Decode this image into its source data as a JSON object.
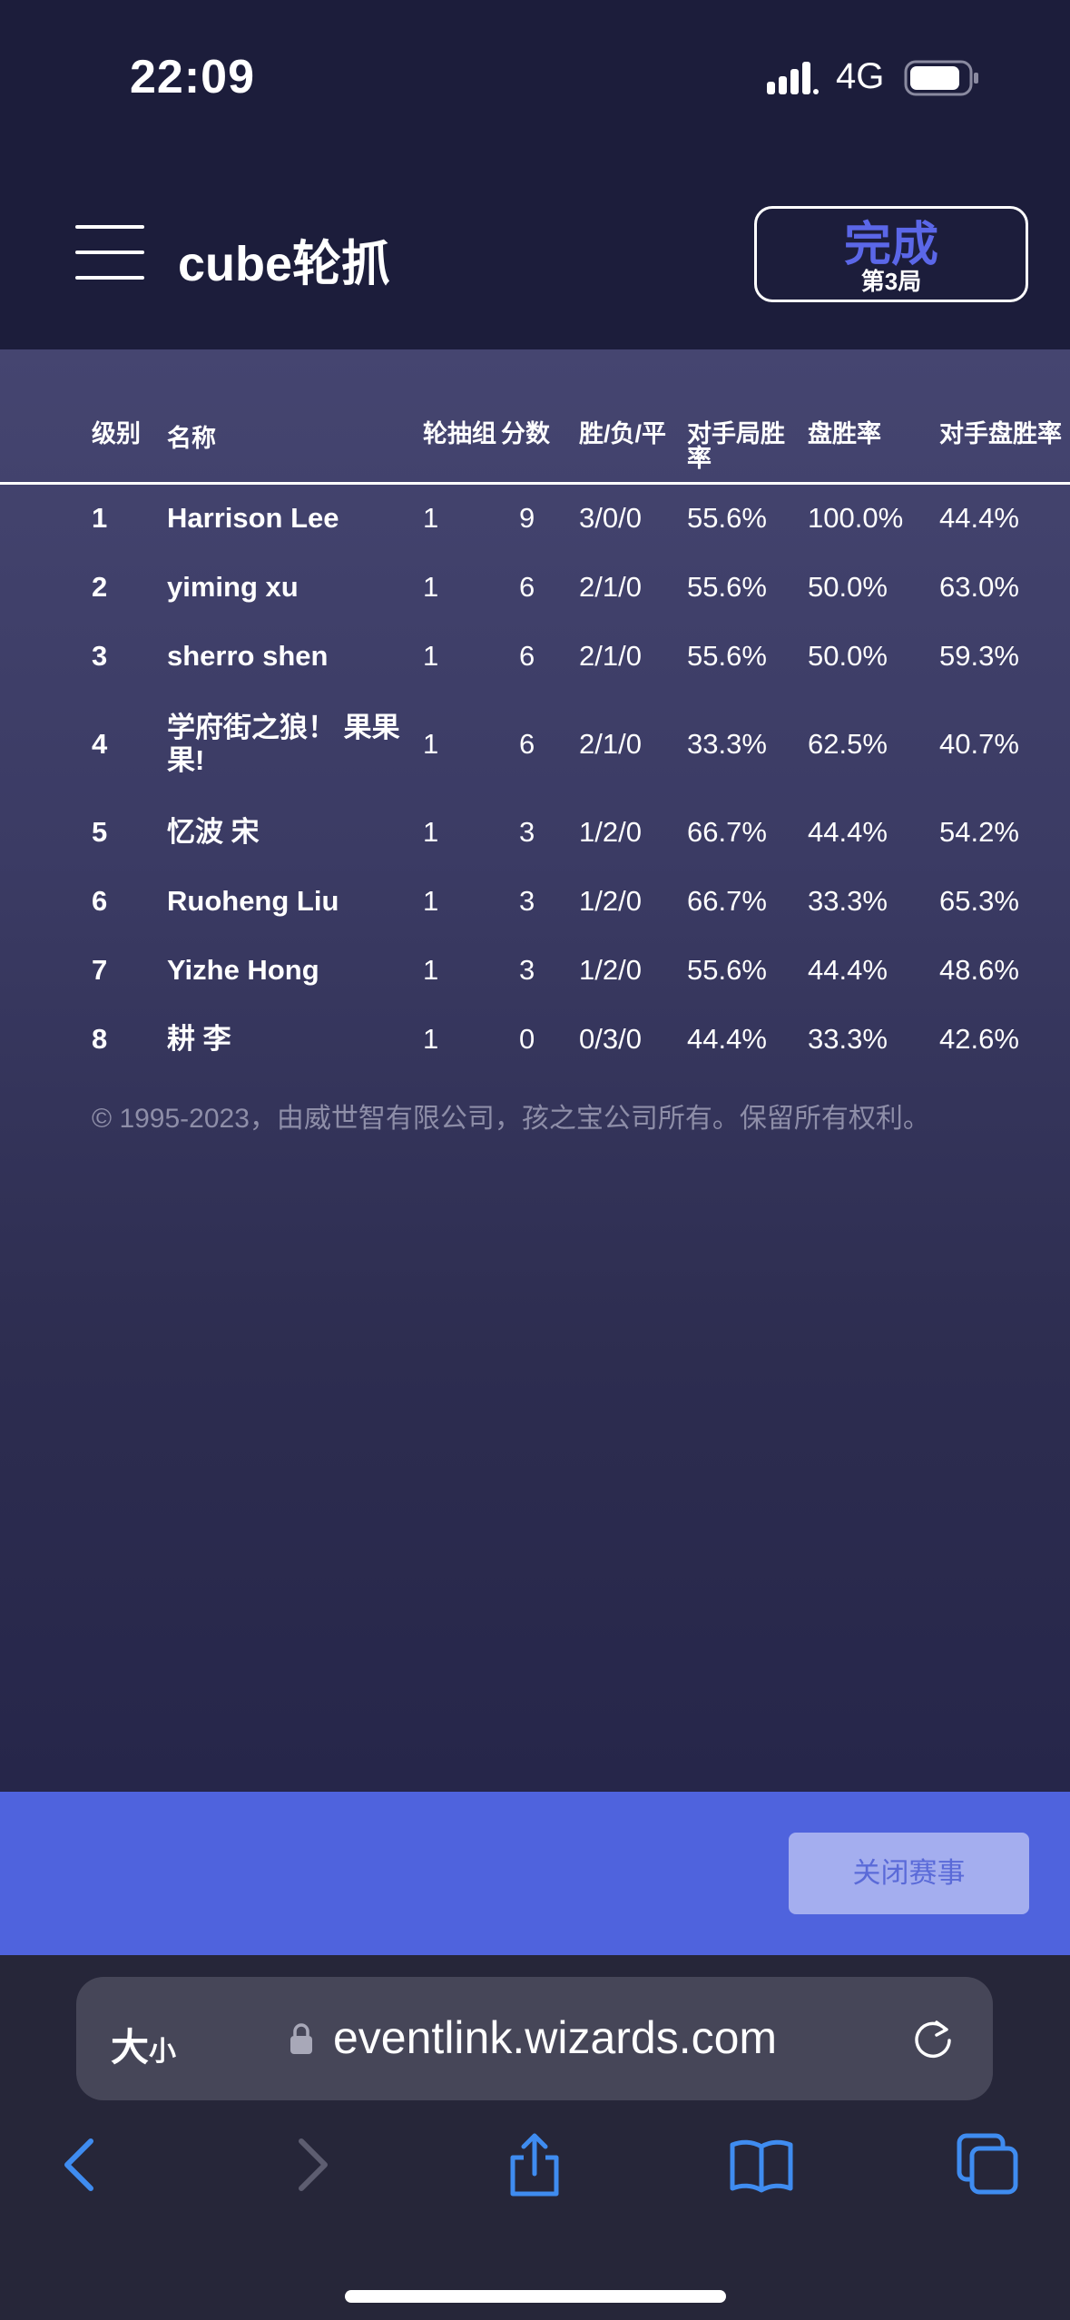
{
  "status_bar": {
    "time": "22:09",
    "network": "4G"
  },
  "header": {
    "title": "cube轮抓",
    "round_status": "完成",
    "round_label": "第3局"
  },
  "table": {
    "columns": [
      "级别",
      "名称",
      "轮抽组",
      "分数",
      "胜/负/平",
      "对手局胜率",
      "盘胜率",
      "对手盘胜率"
    ],
    "rows": [
      {
        "rank": "1",
        "name": "Harrison Lee",
        "table": "1",
        "points": "9",
        "record": "3/0/0",
        "omw": "55.6%",
        "gw": "100.0%",
        "ogw": "44.4%"
      },
      {
        "rank": "2",
        "name": "yiming xu",
        "table": "1",
        "points": "6",
        "record": "2/1/0",
        "omw": "55.6%",
        "gw": "50.0%",
        "ogw": "63.0%"
      },
      {
        "rank": "3",
        "name": "sherro shen",
        "table": "1",
        "points": "6",
        "record": "2/1/0",
        "omw": "55.6%",
        "gw": "50.0%",
        "ogw": "59.3%"
      },
      {
        "rank": "4",
        "name": "学府街之狼！ 果果果!",
        "table": "1",
        "points": "6",
        "record": "2/1/0",
        "omw": "33.3%",
        "gw": "62.5%",
        "ogw": "40.7%"
      },
      {
        "rank": "5",
        "name": "忆波 宋",
        "table": "1",
        "points": "3",
        "record": "1/2/0",
        "omw": "66.7%",
        "gw": "44.4%",
        "ogw": "54.2%"
      },
      {
        "rank": "6",
        "name": "Ruoheng Liu",
        "table": "1",
        "points": "3",
        "record": "1/2/0",
        "omw": "66.7%",
        "gw": "33.3%",
        "ogw": "65.3%"
      },
      {
        "rank": "7",
        "name": "Yizhe Hong",
        "table": "1",
        "points": "3",
        "record": "1/2/0",
        "omw": "55.6%",
        "gw": "44.4%",
        "ogw": "48.6%"
      },
      {
        "rank": "8",
        "name": "耕 李",
        "table": "1",
        "points": "0",
        "record": "0/3/0",
        "omw": "44.4%",
        "gw": "33.3%",
        "ogw": "42.6%"
      }
    ]
  },
  "footer": {
    "copyright": "© 1995-2023，由威世智有限公司，孩之宝公司所有。保留所有权利。"
  },
  "actions": {
    "close_event": "关闭赛事"
  },
  "browser": {
    "text_size_big": "大",
    "text_size_small": "小",
    "url": "eventlink.wizards.com"
  },
  "colors": {
    "background": "#1c1d3b",
    "accent": "#4f63dd",
    "round_status": "#5b67e8",
    "browser_icons": "#3f8cf0"
  },
  "icons": [
    "menu-icon",
    "signal-icon",
    "battery-icon",
    "lock-icon",
    "reload-icon",
    "back-icon",
    "forward-icon",
    "share-icon",
    "bookmarks-icon",
    "tabs-icon"
  ]
}
